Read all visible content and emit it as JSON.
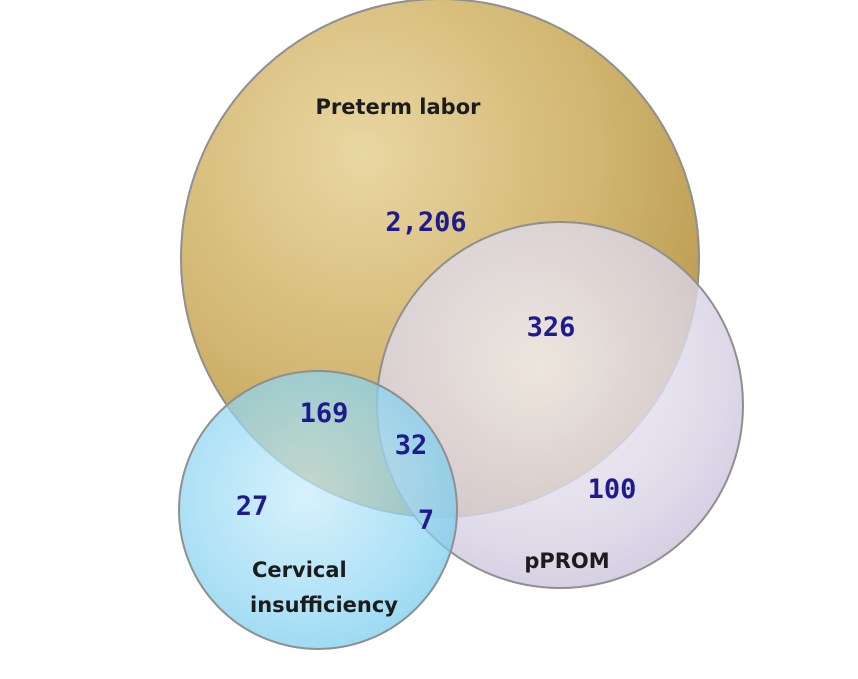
{
  "sets": {
    "preterm_labor": {
      "label": "Preterm labor",
      "color": "#c8ab5e"
    },
    "pprom": {
      "label": "pPROM",
      "color": "#c9c2d8"
    },
    "cervical_insufficiency": {
      "label_line1": "Cervical",
      "label_line2": "insufficiency",
      "color": "#7fd0f0"
    }
  },
  "regions": {
    "preterm_only": "2,206",
    "preterm_pprom": "326",
    "pprom_only": "100",
    "preterm_cervical": "169",
    "all_three": "32",
    "cervical_pprom": "7",
    "cervical_only": "27"
  },
  "colors": {
    "outline": "#8f8f8f",
    "count_text": "#1e1b8e",
    "label_text": "#1c1c1c"
  }
}
